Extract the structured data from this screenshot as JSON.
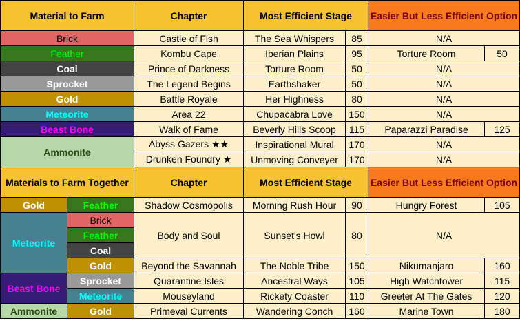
{
  "colors": {
    "header": "#f6c22d",
    "header_option": "#f77a1c",
    "header_option_text": "#7a0000",
    "cell": "#fdefc9"
  },
  "table1": {
    "headers": [
      "Material to Farm",
      "Chapter",
      "Most Efficient Stage",
      "Easier But Less Efficient Option"
    ],
    "rows": [
      {
        "material": "Brick",
        "bg": "#e06666",
        "fg": "#000000",
        "chapter": "Castle of Fish",
        "stage": "The Sea Whispers",
        "num": "85",
        "option": "N/A",
        "option_num": ""
      },
      {
        "material": "Feather",
        "bg": "#38761d",
        "fg": "#00ff00",
        "chapter": "Kombu Cape",
        "stage": "Iberian Plains",
        "num": "95",
        "option": "Torture Room",
        "option_num": "50"
      },
      {
        "material": "Coal",
        "bg": "#434343",
        "fg": "#ffffff",
        "chapter": "Prince of Darkness",
        "stage": "Torture Room",
        "num": "50",
        "option": "N/A",
        "option_num": ""
      },
      {
        "material": "Sprocket",
        "bg": "#999999",
        "fg": "#ffffff",
        "chapter": "The Legend Begins",
        "stage": "Earthshaker",
        "num": "50",
        "option": "N/A",
        "option_num": ""
      },
      {
        "material": "Gold",
        "bg": "#bf9000",
        "fg": "#ffffff",
        "chapter": "Battle Royale",
        "stage": "Her Highness",
        "num": "80",
        "option": "N/A",
        "option_num": ""
      },
      {
        "material": "Meteorite",
        "bg": "#45818e",
        "fg": "#00ffff",
        "chapter": "Area 22",
        "stage": "Chupacabra Love",
        "num": "150",
        "option": "N/A",
        "option_num": ""
      },
      {
        "material": "Beast Bone",
        "bg": "#351c75",
        "fg": "#ff00ff",
        "chapter": "Walk of Fame",
        "stage": "Beverly Hills Scoop",
        "num": "115",
        "option": "Paparazzi Paradise",
        "option_num": "125"
      }
    ],
    "ammonite": {
      "material": "Ammonite",
      "bg": "#b6d7a8",
      "fg": "#274e13",
      "rows": [
        {
          "chapter": "Abyss Gazers ★★",
          "stage": "Inspirational Mural",
          "num": "170",
          "option": "N/A"
        },
        {
          "chapter": "Drunken Foundry ★",
          "stage": "Unmoving Conveyer",
          "num": "170",
          "option": "N/A"
        }
      ]
    }
  },
  "table2": {
    "headers": [
      "Materials to Farm Together",
      "Chapter",
      "Most Efficient Stage",
      "Easier But Less Efficient Option"
    ],
    "shadow": {
      "m1": "Gold",
      "m2": "Feather",
      "chapter": "Shadow Cosmopolis",
      "stage": "Morning Rush Hour",
      "num": "90",
      "option": "Hungry Forest",
      "option_num": "105"
    },
    "meteorite_group": {
      "material": "Meteorite",
      "subs": [
        "Brick",
        "Feather",
        "Coal"
      ],
      "chapter": "Body and Soul",
      "stage": "Sunset's Howl",
      "num": "80",
      "option": "N/A",
      "savannah": {
        "m2": "Gold",
        "chapter": "Beyond the Savannah",
        "stage": "The Noble Tribe",
        "num": "150",
        "option": "Nikumanjaro",
        "option_num": "160"
      }
    },
    "beast_group": {
      "material": "Beast Bone",
      "rows": [
        {
          "m2": "Sprocket",
          "chapter": "Quarantine Isles",
          "stage": "Ancestral Ways",
          "num": "105",
          "option": "High Watchtower",
          "option_num": "115"
        },
        {
          "m2": "Meteorite",
          "chapter": "Mouseyland",
          "stage": "Rickety Coaster",
          "num": "110",
          "option": "Greeter At The Gates",
          "option_num": "120"
        }
      ]
    },
    "ammonite_row": {
      "m1": "Ammonite",
      "m2": "Gold",
      "chapter": "Primeval Currents",
      "stage": "Wandering Conch",
      "num": "160",
      "option": "Marine Town",
      "option_num": "180"
    }
  }
}
